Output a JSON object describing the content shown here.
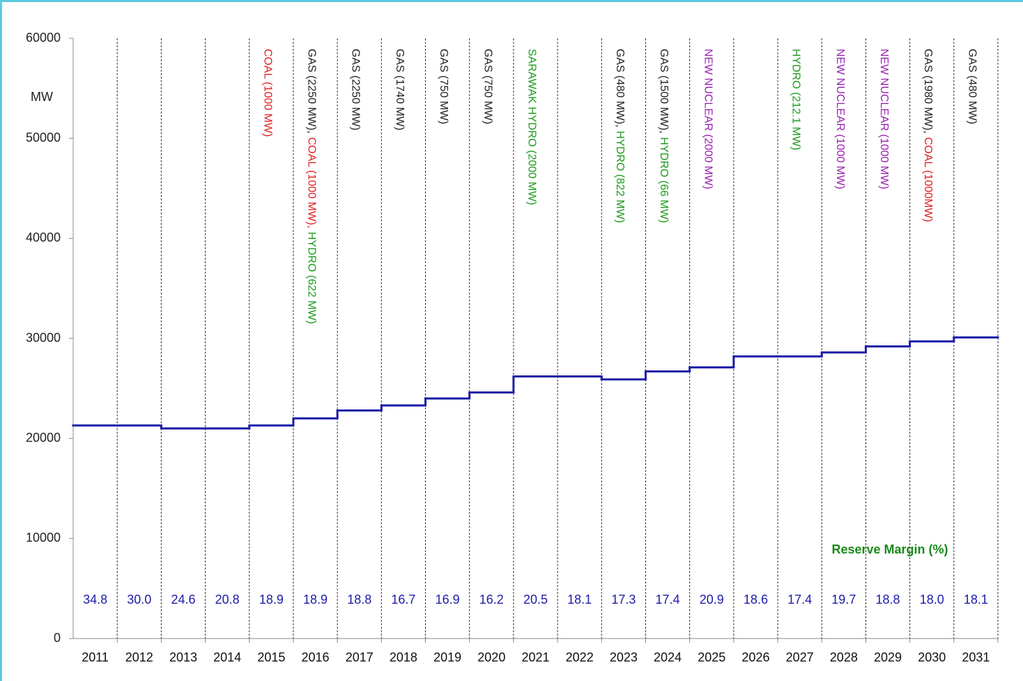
{
  "chart_data": {
    "type": "step",
    "y_label": "MW",
    "categories": [
      "2011",
      "2012",
      "2013",
      "2014",
      "2015",
      "2016",
      "2017",
      "2018",
      "2019",
      "2020",
      "2021",
      "2022",
      "2023",
      "2024",
      "2025",
      "2026",
      "2027",
      "2028",
      "2029",
      "2030",
      "2031"
    ],
    "series": [
      {
        "name": "MW",
        "color": "#1c1ca8",
        "values": [
          21300,
          21300,
          21000,
          21000,
          21300,
          22000,
          22800,
          23300,
          24000,
          24600,
          26200,
          26200,
          25900,
          26700,
          27100,
          28200,
          28200,
          28600,
          29200,
          29700,
          30100
        ]
      }
    ],
    "ylim": [
      0,
      60000
    ],
    "yticks": [
      0,
      10000,
      20000,
      30000,
      40000,
      50000,
      60000
    ],
    "reserve_margin": {
      "title": "Reserve Margin (%)",
      "color": "#1c1ca8",
      "title_color": "#1a8a1a",
      "values": [
        34.8,
        30.0,
        24.6,
        20.8,
        18.9,
        18.9,
        18.8,
        16.7,
        16.9,
        16.2,
        20.5,
        18.1,
        17.3,
        17.4,
        20.9,
        18.6,
        17.4,
        19.7,
        18.8,
        18.0,
        18.1
      ],
      "value_labels": [
        "34.8",
        "30.0",
        "24.6",
        "20.8",
        "18.9",
        "18.9",
        "18.8",
        "16.7",
        "16.9",
        "16.2",
        "20.5",
        "18.1",
        "17.3",
        "17.4",
        "20.9",
        "18.6",
        "17.4",
        "19.7",
        "18.8",
        "18.0",
        "18.1"
      ]
    },
    "annotations": [
      [],
      [],
      [],
      [],
      [
        {
          "text": "COAL (1000 MW)",
          "color": "#e02020"
        }
      ],
      [
        {
          "text": "GAS (2250 MW),",
          "color": "#222222"
        },
        {
          "text": "COAL (1000 MW),",
          "color": "#e02020"
        },
        {
          "text": "HYDRO (622 MW)",
          "color": "#1a9a1a"
        }
      ],
      [
        {
          "text": "GAS (2250 MW)",
          "color": "#222222"
        }
      ],
      [
        {
          "text": "GAS (1740 MW)",
          "color": "#222222"
        }
      ],
      [
        {
          "text": "GAS (750 MW)",
          "color": "#222222"
        }
      ],
      [
        {
          "text": "GAS (750 MW)",
          "color": "#222222"
        }
      ],
      [
        {
          "text": "SARAWAK HYDRO (2000 MW)",
          "color": "#1a9a1a"
        }
      ],
      [],
      [
        {
          "text": "GAS (480 MW),",
          "color": "#222222"
        },
        {
          "text": "HYDRO (822 MW)",
          "color": "#1a9a1a"
        }
      ],
      [
        {
          "text": "GAS (1500 MW),",
          "color": "#222222"
        },
        {
          "text": "HYDRO (66 MW)",
          "color": "#1a9a1a"
        }
      ],
      [
        {
          "text": "NEW NUCLEAR (2000 MW)",
          "color": "#9a20b0"
        }
      ],
      [],
      [
        {
          "text": "HYDRO (212.1 MW)",
          "color": "#1a9a1a"
        }
      ],
      [
        {
          "text": "NEW NUCLEAR (1000 MW)",
          "color": "#9a20b0"
        }
      ],
      [
        {
          "text": "NEW NUCLEAR (1000 MW)",
          "color": "#9a20b0"
        }
      ],
      [
        {
          "text": "GAS (1980 MW),",
          "color": "#222222"
        },
        {
          "text": "COAL (1000MW)",
          "color": "#e02020"
        }
      ],
      [
        {
          "text": "GAS (480 MW)",
          "color": "#222222"
        }
      ]
    ]
  }
}
